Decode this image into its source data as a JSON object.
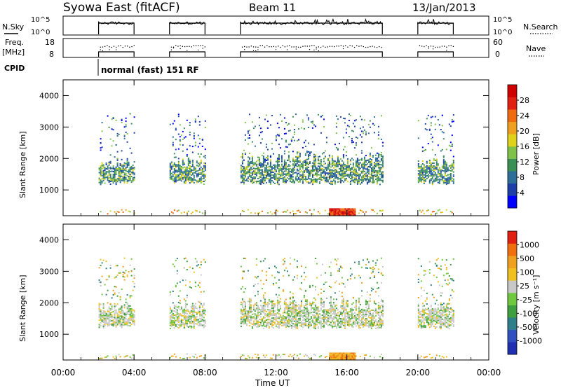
{
  "header": {
    "title": "Syowa East (fitACF)",
    "beam": "Beam 11",
    "date": "13/Jan/2013"
  },
  "meta_panels": {
    "nsky_label": "N.Sky",
    "nsearch_label": "N.Search",
    "freq_label": "Freq.",
    "freq_unit": "[MHz]",
    "nave_label": "Nave",
    "cpid_label": "CPID",
    "cpid_text": "normal (fast) 151 RF",
    "noise_ticks": [
      "10^5",
      "10^0"
    ],
    "freq_ticks": [
      "18",
      "8"
    ],
    "nave_ticks": [
      "60",
      "0"
    ]
  },
  "chart_data": [
    {
      "type": "heatmap",
      "panel": "power",
      "xlabel": "",
      "ylabel": "Slant Range [km]",
      "x_ticks": [
        "00:00",
        "04:00",
        "08:00",
        "12:00",
        "16:00",
        "20:00",
        "00:00"
      ],
      "xlim_hours": [
        0,
        24
      ],
      "y_ticks": [
        1000,
        2000,
        3000,
        4000
      ],
      "ylim": [
        180,
        4500
      ],
      "colorbar_label": "Power [dB]",
      "colorbar_ticks": [
        "28",
        "24",
        "20",
        "16",
        "12",
        "8",
        "4"
      ],
      "colorbar_colors": [
        "#0000ff",
        "#1f3fa8",
        "#2e6f99",
        "#3a8f55",
        "#7fc24a",
        "#e0d21a",
        "#f0a020",
        "#f06a10",
        "#e02010",
        "#d00000"
      ],
      "data_windows_hours": [
        [
          2.0,
          4.0
        ],
        [
          6.0,
          8.0
        ],
        [
          10.0,
          18.0
        ],
        [
          20.0,
          22.0
        ]
      ]
    },
    {
      "type": "heatmap",
      "panel": "velocity",
      "xlabel": "Time UT",
      "ylabel": "Slant Range [km]",
      "x_ticks": [
        "00:00",
        "04:00",
        "08:00",
        "12:00",
        "16:00",
        "20:00",
        "00:00"
      ],
      "xlim_hours": [
        0,
        24
      ],
      "y_ticks": [
        1000,
        2000,
        3000,
        4000
      ],
      "ylim": [
        180,
        4500
      ],
      "colorbar_label": "Velocity [m s⁻¹]",
      "colorbar_ticks": [
        "1000",
        "500",
        "100",
        "25",
        "-25",
        "-100",
        "-500",
        "-1000"
      ],
      "colorbar_colors": [
        "#2030b0",
        "#3050c0",
        "#2e7f8a",
        "#3f9f3f",
        "#70c840",
        "#c8c8c8",
        "#f0c020",
        "#f0a020",
        "#f07010",
        "#e02010"
      ],
      "data_windows_hours": [
        [
          2.0,
          4.0
        ],
        [
          6.0,
          8.0
        ],
        [
          10.0,
          18.0
        ],
        [
          20.0,
          22.0
        ]
      ]
    }
  ]
}
